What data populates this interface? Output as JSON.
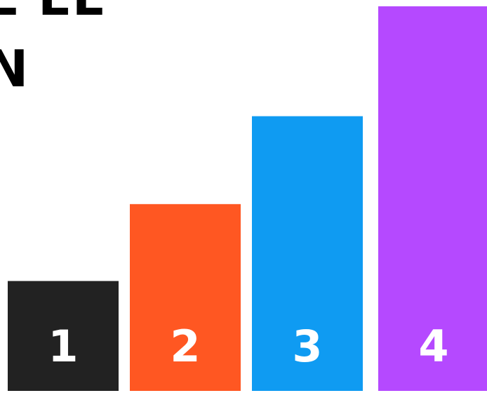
{
  "heading": {
    "line1": "E EL",
    "line2": "N"
  },
  "chart_data": {
    "type": "bar",
    "categories": [
      "1",
      "2",
      "3",
      "4"
    ],
    "values": [
      1.0,
      1.7,
      2.5,
      3.5
    ],
    "ylim": [
      0,
      3.5
    ],
    "grid": false,
    "colors": [
      "#222222",
      "#ff5722",
      "#0f9bf2",
      "#b549ff"
    ],
    "label_color": "#ffffff"
  }
}
